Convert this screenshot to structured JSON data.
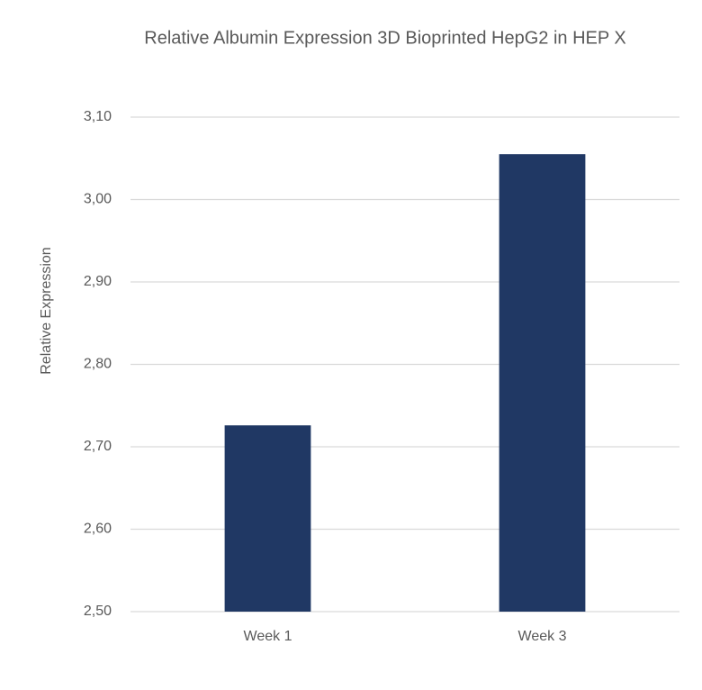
{
  "chart_data": {
    "type": "bar",
    "title": "Relative Albumin Expression 3D Bioprinted HepG2 in HEP X",
    "y_label": "Relative Expression",
    "categories": [
      "Week 1",
      "Week 3"
    ],
    "values": [
      2.726,
      3.055
    ],
    "color": "#203864",
    "ylim": [
      2.5,
      3.1
    ],
    "yticks": [
      {
        "value": 2.5,
        "label": "2,50"
      },
      {
        "value": 2.6,
        "label": "2,60"
      },
      {
        "value": 2.7,
        "label": "2,70"
      },
      {
        "value": 2.8,
        "label": "2,80"
      },
      {
        "value": 2.9,
        "label": "2,90"
      },
      {
        "value": 3.0,
        "label": "3,00"
      },
      {
        "value": 3.1,
        "label": "3,10"
      }
    ],
    "grid": true
  }
}
